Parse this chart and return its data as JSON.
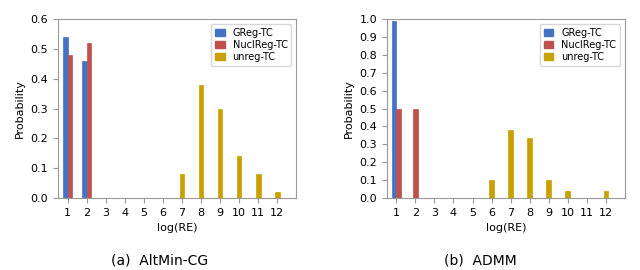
{
  "subplot_a": {
    "title": "(a)  AltMin-CG",
    "xlim": [
      0.5,
      13
    ],
    "ylim": [
      0,
      0.6
    ],
    "yticks": [
      0,
      0.1,
      0.2,
      0.3,
      0.4,
      0.5,
      0.6
    ],
    "xticks": [
      1,
      2,
      3,
      4,
      5,
      6,
      7,
      8,
      9,
      10,
      11,
      12
    ],
    "xlabel": "log(RE)",
    "ylabel": "Probability",
    "greg_vals": {
      "1": 0.54,
      "2": 0.46
    },
    "nuclreg_vals": {
      "1": 0.48,
      "2": 0.52
    },
    "unreg_vals": {
      "7": 0.08,
      "8": 0.38,
      "9": 0.3,
      "10": 0.14,
      "11": 0.08,
      "12": 0.02
    }
  },
  "subplot_b": {
    "title": "(b)  ADMM",
    "xlim": [
      0.5,
      13
    ],
    "ylim": [
      0,
      1.0
    ],
    "yticks": [
      0,
      0.1,
      0.2,
      0.3,
      0.4,
      0.5,
      0.6,
      0.7,
      0.8,
      0.9,
      1.0
    ],
    "xticks": [
      1,
      2,
      3,
      4,
      5,
      6,
      7,
      8,
      9,
      10,
      11,
      12
    ],
    "xlabel": "log(RE)",
    "ylabel": "Probability",
    "greg_vals": {
      "1": 0.99
    },
    "nuclreg_vals": {
      "1": 0.5,
      "2": 0.5
    },
    "unreg_vals": {
      "6": 0.1,
      "7": 0.38,
      "8": 0.335,
      "9": 0.1,
      "10": 0.04,
      "12": 0.04
    }
  },
  "colors": {
    "greg": "#4472C4",
    "nuclreg": "#C0504D",
    "unreg": "#C8A000"
  },
  "legend_labels": [
    "GReg-TC",
    "NuclReg-TC",
    "unreg-TC"
  ],
  "bar_width": 0.25,
  "font_size": 8,
  "title_font_size": 10
}
